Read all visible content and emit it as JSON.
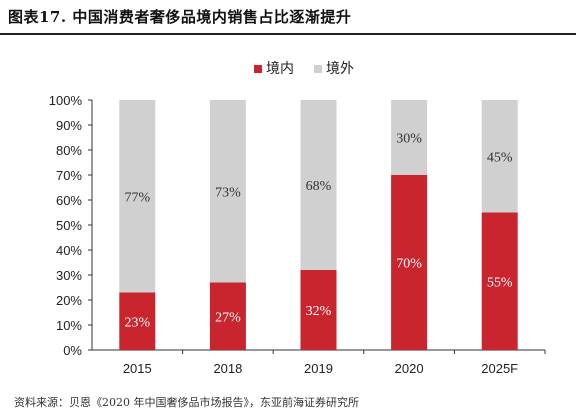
{
  "header": {
    "title": "图表17. 中国消费者奢侈品境内销售占比逐渐提升"
  },
  "footer": {
    "source": "资料来源：贝恩《2020 年中国奢侈品市场报告》，东亚前海证券研究所"
  },
  "colors": {
    "domestic": "#c8252e",
    "overseas": "#d0d0d0"
  },
  "chart_data": {
    "type": "bar",
    "stacked": true,
    "categories": [
      "2015",
      "2018",
      "2019",
      "2020",
      "2025F"
    ],
    "series": [
      {
        "name": "境内",
        "values": [
          23,
          27,
          32,
          70,
          55
        ],
        "labels": [
          "23%",
          "27%",
          "32%",
          "70%",
          "55%"
        ]
      },
      {
        "name": "境外",
        "values": [
          77,
          73,
          68,
          30,
          45
        ],
        "labels": [
          "77%",
          "73%",
          "68%",
          "30%",
          "45%"
        ]
      }
    ],
    "ylim": [
      0,
      100
    ],
    "yticks": [
      "0%",
      "10%",
      "20%",
      "30%",
      "40%",
      "50%",
      "60%",
      "70%",
      "80%",
      "90%",
      "100%"
    ],
    "legend": "top-center",
    "grid": false
  }
}
